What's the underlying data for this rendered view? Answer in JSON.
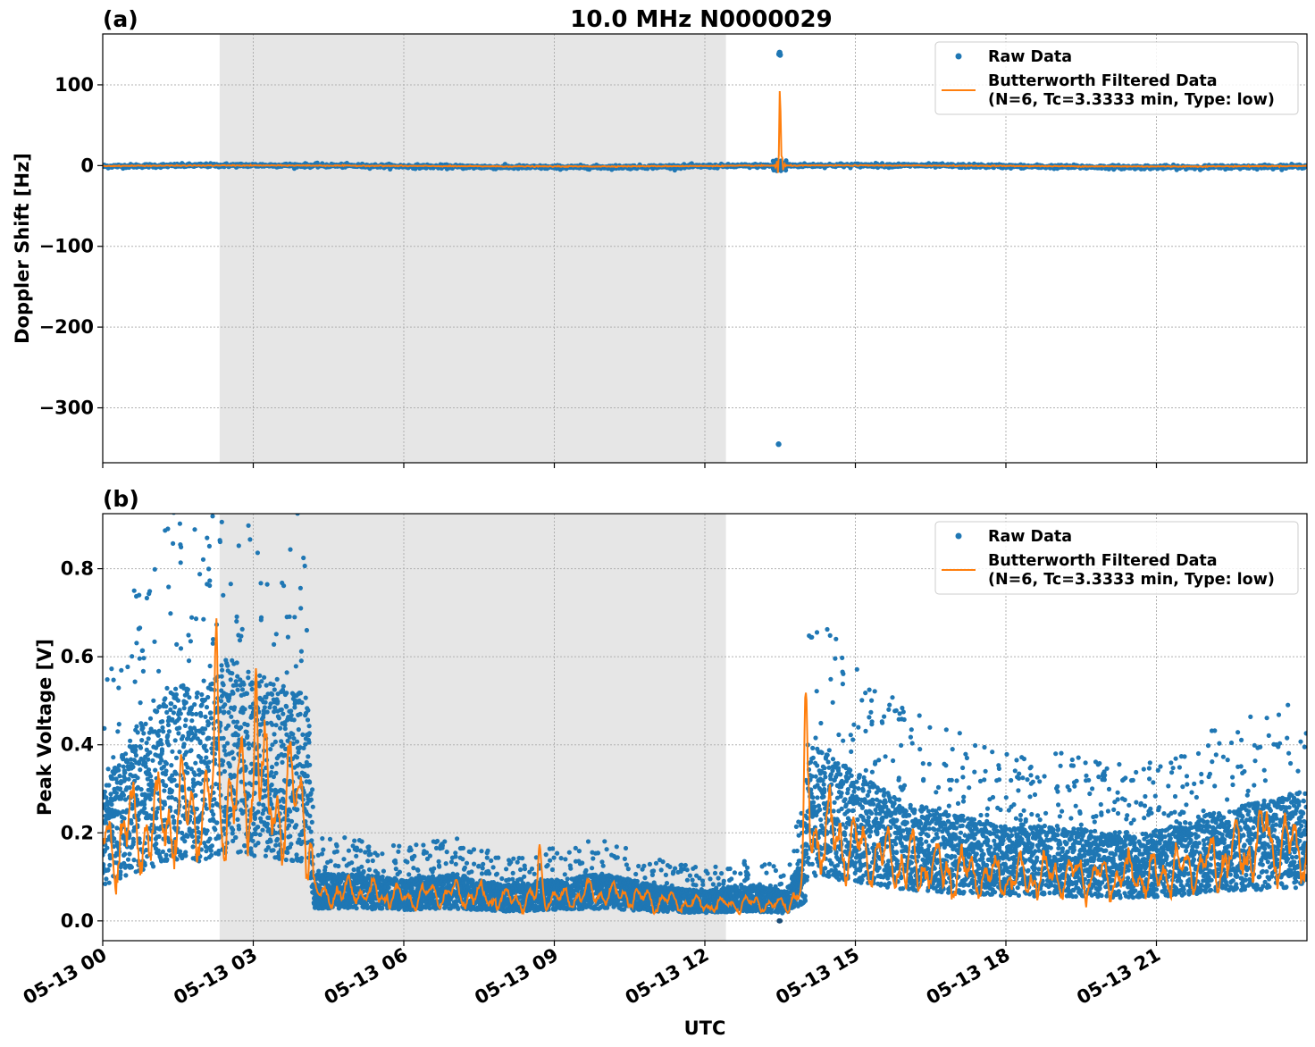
{
  "figure_title": "10.0 MHz N0000029",
  "x_axis_label": "UTC",
  "x_tick_labels": [
    "05-13 00",
    "05-13 03",
    "05-13 06",
    "05-13 09",
    "05-13 12",
    "05-13 15",
    "05-13 18",
    "05-13 21"
  ],
  "colors": {
    "raw": "#1f77b4",
    "filtered": "#ff7f0e",
    "night_shade": "#e6e6e6"
  },
  "legend": {
    "raw_label": "Raw Data",
    "filtered_label_line1": "Butterworth Filtered Data",
    "filtered_label_line2": "(N=6, Tc=3.3333 min, Type: low)"
  },
  "chart_data": [
    {
      "panel": "(a)",
      "type": "scatter+line",
      "ylabel": "Doppler Shift [Hz]",
      "xlim_hours": [
        0,
        24
      ],
      "ylim": [
        -368,
        163
      ],
      "yticks": [
        100,
        0,
        -100,
        -200,
        -300
      ],
      "ytick_labels": [
        "100",
        "0",
        "−100",
        "−200",
        "−300"
      ],
      "night_shading_hours": [
        2.33,
        12.42
      ],
      "grid": true,
      "legend_placement": "top-right",
      "series": [
        {
          "name": "Raw Data",
          "kind": "scatter",
          "baseline": 0,
          "noise": 2.5,
          "outliers": [
            [
              13.48,
              138
            ],
            [
              13.49,
              140
            ],
            [
              13.5,
              137
            ],
            [
              13.47,
              -345
            ]
          ]
        },
        {
          "name": "Butterworth Filtered Data",
          "kind": "line",
          "baseline": 0,
          "spike": {
            "x": 13.5,
            "peak": 100,
            "trough": -16
          }
        }
      ]
    },
    {
      "panel": "(b)",
      "type": "scatter+line",
      "ylabel": "Peak Voltage [V]",
      "xlim_hours": [
        0,
        24
      ],
      "ylim": [
        -0.045,
        0.925
      ],
      "yticks": [
        0.8,
        0.6,
        0.4,
        0.2,
        0.0
      ],
      "ytick_labels": [
        "0.8",
        "0.6",
        "0.4",
        "0.2",
        "0.0"
      ],
      "night_shading_hours": [
        2.33,
        12.42
      ],
      "grid": true,
      "legend_placement": "top-right",
      "series": [
        {
          "name": "Raw Data",
          "kind": "scatter",
          "envelope": [
            [
              0,
              0.22
            ],
            [
              0.5,
              0.3
            ],
            [
              1,
              0.35
            ],
            [
              1.5,
              0.4
            ],
            [
              2,
              0.38
            ],
            [
              2.5,
              0.45
            ],
            [
              3,
              0.42
            ],
            [
              3.5,
              0.4
            ],
            [
              4.1,
              0.38
            ],
            [
              4.2,
              0.08
            ],
            [
              5,
              0.08
            ],
            [
              6,
              0.07
            ],
            [
              7,
              0.08
            ],
            [
              8,
              0.06
            ],
            [
              9,
              0.07
            ],
            [
              10,
              0.08
            ],
            [
              11,
              0.06
            ],
            [
              12,
              0.05
            ],
            [
              13,
              0.06
            ],
            [
              13.6,
              0.05
            ],
            [
              14,
              0.12
            ],
            [
              14.05,
              0.3
            ],
            [
              15,
              0.25
            ],
            [
              16,
              0.2
            ],
            [
              17,
              0.18
            ],
            [
              18,
              0.16
            ],
            [
              19,
              0.16
            ],
            [
              20,
              0.15
            ],
            [
              21,
              0.15
            ],
            [
              22,
              0.18
            ],
            [
              23,
              0.2
            ],
            [
              24,
              0.22
            ]
          ]
        },
        {
          "name": "Butterworth Filtered Data",
          "kind": "line",
          "envelope": [
            [
              0,
              0.2
            ],
            [
              0.5,
              0.25
            ],
            [
              1,
              0.27
            ],
            [
              1.5,
              0.3
            ],
            [
              2,
              0.3
            ],
            [
              2.5,
              0.35
            ],
            [
              3,
              0.34
            ],
            [
              3.5,
              0.34
            ],
            [
              4.1,
              0.3
            ],
            [
              4.2,
              0.07
            ],
            [
              5,
              0.08
            ],
            [
              6,
              0.065
            ],
            [
              7,
              0.08
            ],
            [
              8,
              0.06
            ],
            [
              9,
              0.065
            ],
            [
              10,
              0.08
            ],
            [
              11,
              0.06
            ],
            [
              12,
              0.045
            ],
            [
              13,
              0.05
            ],
            [
              13.6,
              0.045
            ],
            [
              14,
              0.1
            ],
            [
              14.05,
              0.28
            ],
            [
              15,
              0.2
            ],
            [
              16,
              0.16
            ],
            [
              17,
              0.14
            ],
            [
              18,
              0.12
            ],
            [
              19,
              0.13
            ],
            [
              20,
              0.12
            ],
            [
              21,
              0.13
            ],
            [
              22,
              0.16
            ],
            [
              23,
              0.2
            ],
            [
              24,
              0.22
            ]
          ],
          "visible_peaks": [
            [
              2.25,
              0.75
            ],
            [
              3.05,
              0.72
            ],
            [
              14.0,
              0.56
            ],
            [
              8.7,
              0.19
            ],
            [
              23.2,
              0.31
            ]
          ]
        }
      ]
    }
  ]
}
